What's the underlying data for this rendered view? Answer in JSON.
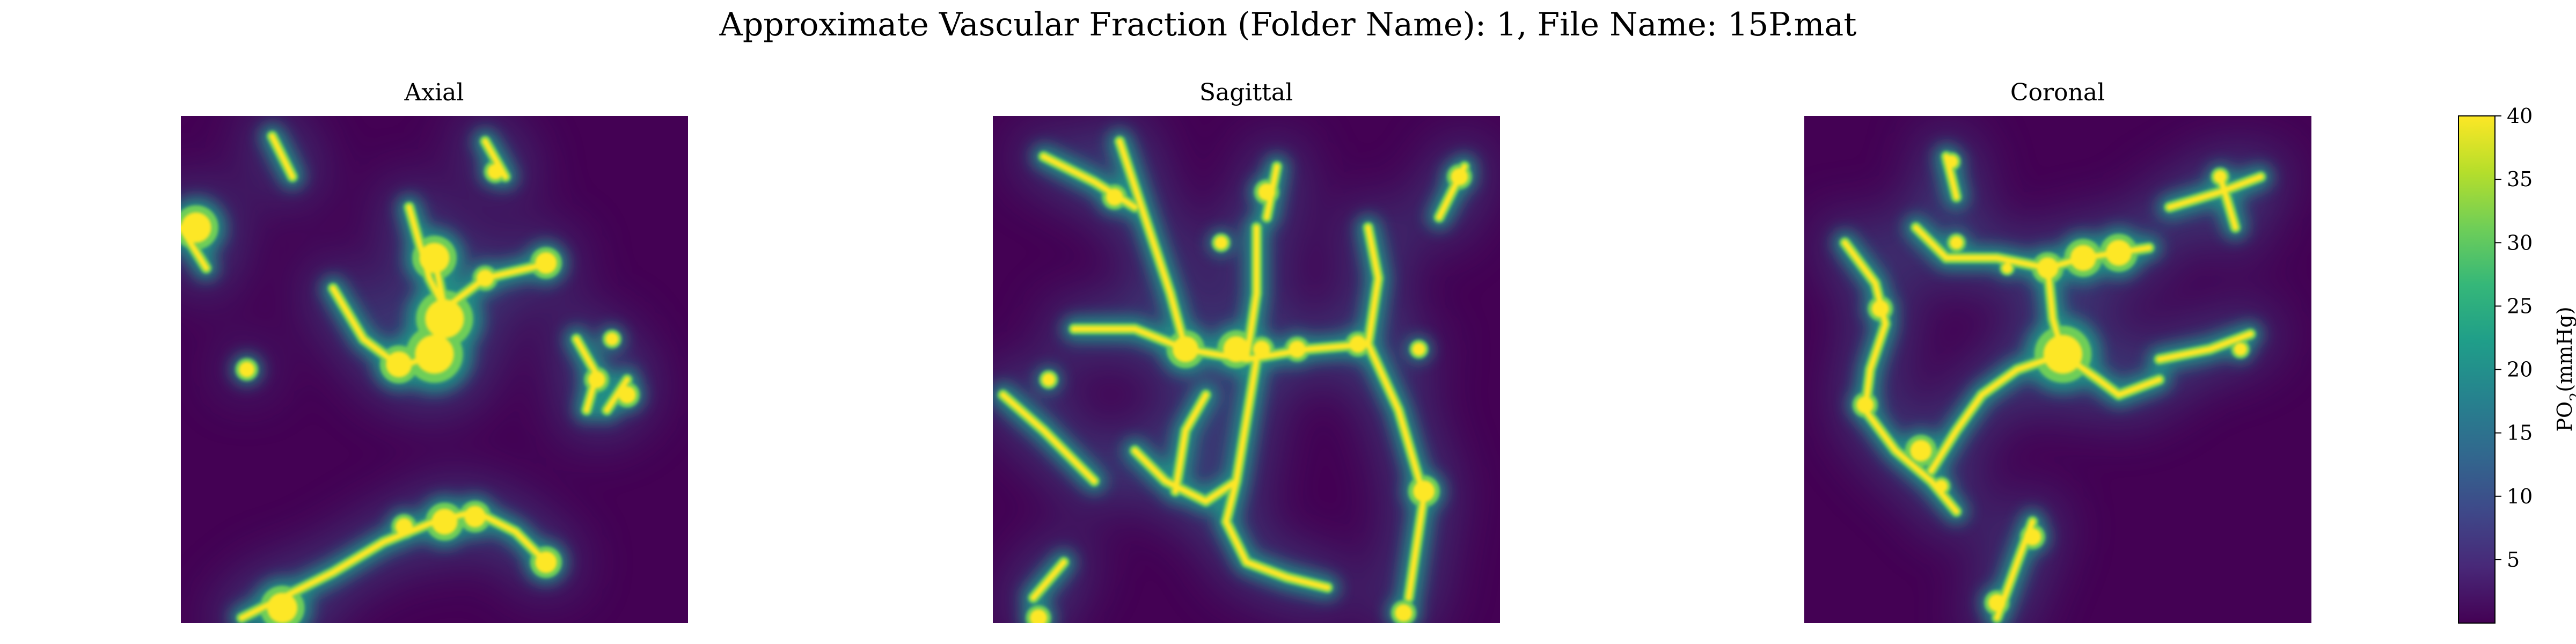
{
  "chart_data": {
    "type": "heatmap",
    "title": "Approximate Vascular Fraction (Folder Name): 1, File Name: 15P.mat",
    "colormap": "viridis",
    "colormap_stops": [
      "#440154",
      "#482878",
      "#3e4989",
      "#31688e",
      "#26828e",
      "#1f9e89",
      "#35b779",
      "#6ece58",
      "#b5de2b",
      "#fde725"
    ],
    "background_color": "#440154",
    "vmin": 0,
    "vmax": 40,
    "panels": [
      {
        "title": "Axial"
      },
      {
        "title": "Sagittal"
      },
      {
        "title": "Coronal"
      }
    ],
    "colorbar": {
      "label_main": "PO",
      "label_sub": "2",
      "label_unit": "(mmHg)",
      "ticks": [
        {
          "value": 5,
          "label": "5"
        },
        {
          "value": 10,
          "label": "10"
        },
        {
          "value": 15,
          "label": "15"
        },
        {
          "value": 20,
          "label": "20"
        },
        {
          "value": 25,
          "label": "25"
        },
        {
          "value": 30,
          "label": "30"
        },
        {
          "value": 35,
          "label": "35"
        },
        {
          "value": 40,
          "label": "40"
        }
      ]
    }
  }
}
